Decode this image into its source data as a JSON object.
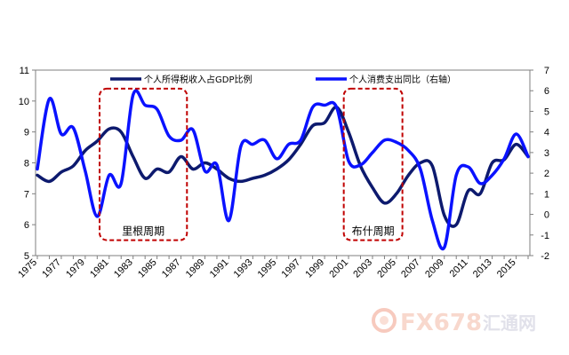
{
  "chart_data": {
    "type": "line",
    "x": [
      1975,
      1976,
      1977,
      1978,
      1979,
      1980,
      1981,
      1982,
      1983,
      1984,
      1985,
      1986,
      1987,
      1988,
      1989,
      1990,
      1991,
      1992,
      1993,
      1994,
      1995,
      1996,
      1997,
      1998,
      1999,
      2000,
      2001,
      2002,
      2003,
      2004,
      2005,
      2006,
      2007,
      2008,
      2009,
      2010,
      2011,
      2012,
      2013,
      2014,
      2015,
      2016
    ],
    "x_tick_labels": [
      "1975",
      "1977",
      "1979",
      "1981",
      "1983",
      "1985",
      "1987",
      "1989",
      "1991",
      "1993",
      "1995",
      "1997",
      "1999",
      "2001",
      "2003",
      "2005",
      "2007",
      "2009",
      "2011",
      "2013",
      "2015"
    ],
    "y_left_ticks": [
      "5",
      "6",
      "7",
      "8",
      "9",
      "10",
      "11"
    ],
    "y_right_ticks": [
      "-2",
      "-1",
      "0",
      "1",
      "2",
      "3",
      "4",
      "5",
      "6",
      "7"
    ],
    "ylim_left": [
      5,
      11
    ],
    "ylim_right": [
      -2,
      7
    ],
    "series": [
      {
        "name": "个人所得税收入占GDP比例",
        "axis": "left",
        "color": "#0d1a6e",
        "values": [
          7.6,
          7.4,
          7.7,
          7.9,
          8.4,
          8.7,
          9.1,
          9.0,
          8.2,
          7.5,
          7.8,
          7.7,
          8.2,
          7.8,
          8.0,
          7.8,
          7.5,
          7.4,
          7.5,
          7.6,
          7.8,
          8.1,
          8.6,
          9.2,
          9.3,
          9.8,
          9.0,
          7.9,
          7.2,
          6.7,
          7.0,
          7.6,
          8.0,
          7.9,
          6.3,
          6.0,
          7.1,
          7.0,
          8.0,
          8.1,
          8.6,
          8.2
        ]
      },
      {
        "name": "个人消费支出同比（右轴）",
        "axis": "right",
        "color": "#0a12ff",
        "values": [
          2.2,
          5.6,
          3.9,
          4.2,
          2.1,
          -0.1,
          1.9,
          1.5,
          5.8,
          5.3,
          5.1,
          3.8,
          3.6,
          4.1,
          2.1,
          2.4,
          -0.3,
          3.3,
          3.4,
          3.6,
          2.7,
          3.4,
          3.6,
          5.2,
          5.3,
          5.2,
          2.6,
          2.4,
          3.0,
          3.6,
          3.5,
          3.1,
          2.2,
          -0.3,
          -1.6,
          1.9,
          2.3,
          1.5,
          1.9,
          2.7,
          3.9,
          2.8
        ]
      }
    ],
    "annotations": [
      {
        "label": "里根周期",
        "x_start": 1980.2,
        "x_end": 1987.5,
        "y_top": 10.4,
        "y_bottom": 5.5
      },
      {
        "label": "布什周期",
        "x_start": 2000.6,
        "x_end": 2005.5,
        "y_top": 10.4,
        "y_bottom": 5.5
      }
    ],
    "legend_position": "top-center",
    "grid": false
  },
  "watermark": {
    "brand": "FX678",
    "suffix": "汇通网"
  }
}
